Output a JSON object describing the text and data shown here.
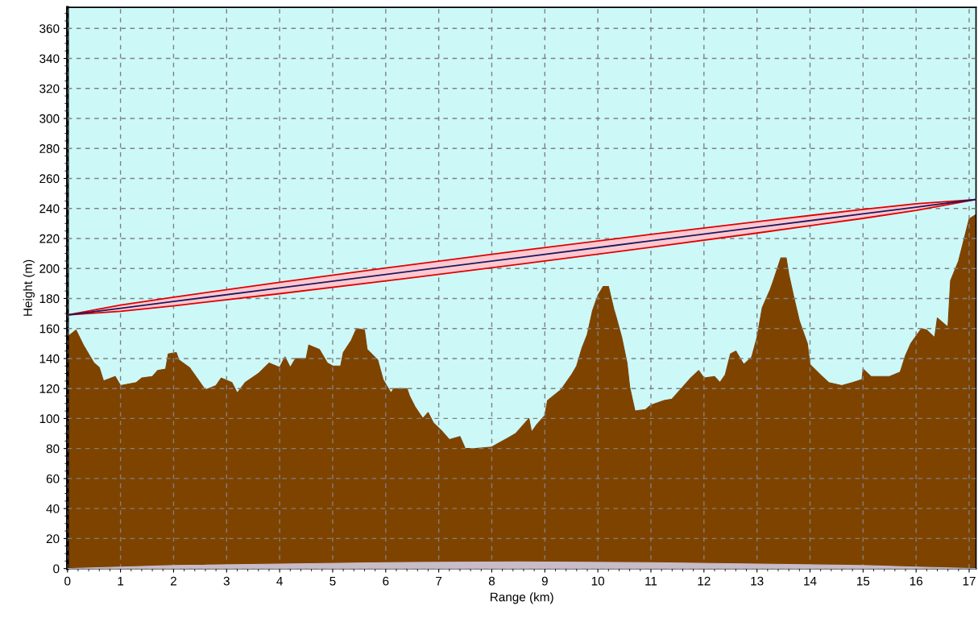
{
  "chart_data": {
    "type": "area",
    "xlabel": "Range (km)",
    "ylabel": "Height (m)",
    "xlim": [
      0,
      17.13
    ],
    "ylim": [
      0,
      374
    ],
    "xticks": [
      0,
      1,
      2,
      3,
      4,
      5,
      6,
      7,
      8,
      9,
      10,
      11,
      12,
      13,
      14,
      15,
      16,
      17
    ],
    "yticks": [
      0,
      20,
      40,
      60,
      80,
      100,
      120,
      140,
      160,
      180,
      200,
      220,
      240,
      260,
      280,
      300,
      320,
      340,
      360
    ],
    "grid": true,
    "series": [
      {
        "color": "#7f4300",
        "x": [
          0,
          0.02,
          0.16,
          0.3,
          0.45,
          0.5,
          0.6,
          0.68,
          0.9,
          1.0,
          1.3,
          1.4,
          1.6,
          1.7,
          1.85,
          1.9,
          2.05,
          2.1,
          2.3,
          2.4,
          2.6,
          2.8,
          2.9,
          3.1,
          3.2,
          3.35,
          3.6,
          3.8,
          4.0,
          4.1,
          4.2,
          4.3,
          4.5,
          4.55,
          4.75,
          4.9,
          5.0,
          5.15,
          5.2,
          5.35,
          5.45,
          5.6,
          5.65,
          5.85,
          5.95,
          6.1,
          6.15,
          6.4,
          6.45,
          6.55,
          6.7,
          6.8,
          6.9,
          7.05,
          7.2,
          7.4,
          7.5,
          7.7,
          8.0,
          8.1,
          8.3,
          8.45,
          8.6,
          8.7,
          8.75,
          8.85,
          9.0,
          9.05,
          9.3,
          9.5,
          9.6,
          9.7,
          9.8,
          9.9,
          10.0,
          10.1,
          10.2,
          10.3,
          10.35,
          10.45,
          10.55,
          10.6,
          10.7,
          10.9,
          11.0,
          11.25,
          11.4,
          11.6,
          11.75,
          11.9,
          12.0,
          12.2,
          12.3,
          12.4,
          12.5,
          12.6,
          12.75,
          12.9,
          13.0,
          13.1,
          13.25,
          13.3,
          13.45,
          13.55,
          13.6,
          13.7,
          13.8,
          13.95,
          14.0,
          14.2,
          14.35,
          14.6,
          14.8,
          14.98,
          15.0,
          15.15,
          15.5,
          15.7,
          15.8,
          15.9,
          16.1,
          16.2,
          16.35,
          16.4,
          16.6,
          16.65,
          16.8,
          16.9,
          17.0,
          17.13
        ],
        "values": [
          153,
          155,
          159,
          149,
          140,
          137,
          134,
          125,
          128,
          122,
          124,
          127,
          128,
          132,
          133,
          143,
          144,
          139,
          134,
          129,
          119,
          122,
          127,
          124,
          117,
          124,
          130,
          137,
          134,
          141,
          134,
          140,
          140,
          149,
          146,
          137,
          135,
          135,
          144,
          152,
          160,
          159,
          146,
          139,
          126,
          117,
          120,
          120,
          115,
          108,
          100,
          104,
          97,
          92,
          86,
          88,
          80,
          80,
          81,
          83,
          87,
          90,
          96,
          100,
          91,
          96,
          102,
          112,
          119,
          129,
          135,
          147,
          156,
          172,
          182,
          188,
          188,
          173,
          167,
          154,
          137,
          121,
          105,
          106,
          109,
          112,
          113,
          121,
          127,
          132,
          127,
          128,
          124,
          129,
          143,
          145,
          136,
          141,
          154,
          174,
          186,
          191,
          207,
          207,
          196,
          180,
          165,
          150,
          136,
          129,
          124,
          122,
          124,
          126,
          133,
          128,
          128,
          131,
          142,
          150,
          160,
          159,
          154,
          167,
          161,
          192,
          205,
          219,
          233,
          236
        ]
      },
      {
        "type": "area",
        "color": "#c8bcc8",
        "x": [
          0,
          1,
          2,
          4,
          6,
          8.5,
          11,
          13,
          15,
          16,
          17.13
        ],
        "values": [
          0,
          1,
          2,
          3,
          4,
          4.5,
          4,
          3,
          2,
          1,
          0
        ]
      },
      {
        "type": "line",
        "color": "#1a1a60",
        "x": [
          0,
          1,
          2,
          4,
          6,
          8.5,
          11,
          13,
          15,
          16,
          17.13
        ],
        "values": [
          169,
          173.5,
          178.0,
          187.0,
          196.0,
          207.2,
          218.4,
          227.4,
          236.4,
          240.9,
          246
        ],
        "upper": [
          169,
          175.6,
          180.9,
          190.8,
          200.3,
          211.7,
          222.7,
          231.2,
          239.4,
          243.1,
          246
        ],
        "lower": [
          169,
          171.4,
          175.1,
          183.2,
          191.7,
          202.7,
          214.1,
          223.6,
          233.4,
          238.7,
          246
        ]
      }
    ]
  }
}
